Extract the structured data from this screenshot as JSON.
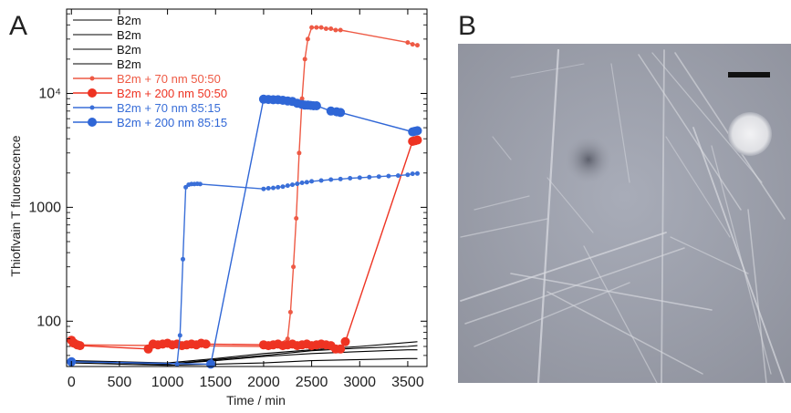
{
  "panels": {
    "a_label": "A",
    "b_label": "B"
  },
  "micrograph": {
    "subject": "negative-stain TEM micrograph of amyloid fibrils",
    "scale_bar_color": "#111111"
  },
  "chart_data": {
    "type": "line",
    "xlabel": "Time / min",
    "ylabel": "Thioflvain T fluorescence",
    "xlim": [
      -50,
      3700
    ],
    "ylim": [
      40,
      55000
    ],
    "y_scale": "log",
    "x_ticks": [
      0,
      500,
      1000,
      1500,
      2000,
      2500,
      3000,
      3500
    ],
    "x_tick_labels": [
      "0",
      "500",
      "1000",
      "1500",
      "2000",
      "2500",
      "3000",
      "3500"
    ],
    "y_ticks": [
      100,
      1000,
      10000
    ],
    "y_tick_labels": [
      "100",
      "1000",
      "10⁴"
    ],
    "legend_position": "top-left",
    "series": [
      {
        "name": "B2m",
        "color": "#000000",
        "marker": "none",
        "marker_size": 0,
        "x": [
          0,
          500,
          1000,
          1500,
          2000,
          2500,
          3000,
          3500,
          3600
        ],
        "y": [
          43,
          42,
          41,
          42,
          43,
          45,
          46,
          47,
          47
        ]
      },
      {
        "name": "B2m",
        "color": "#000000",
        "marker": "none",
        "marker_size": 0,
        "x": [
          0,
          500,
          1000,
          1500,
          2000,
          2500,
          3000,
          3500,
          3600
        ],
        "y": [
          45,
          43,
          42,
          45,
          49,
          52,
          54,
          56,
          56
        ]
      },
      {
        "name": "B2m",
        "color": "#000000",
        "marker": "none",
        "marker_size": 0,
        "x": [
          0,
          500,
          1000,
          1500,
          2000,
          2500,
          3000,
          3500,
          3600
        ],
        "y": [
          44,
          43,
          42,
          46,
          50,
          55,
          58,
          60,
          61
        ]
      },
      {
        "name": "B2m",
        "color": "#000000",
        "marker": "none",
        "marker_size": 0,
        "x": [
          0,
          500,
          1000,
          1500,
          2000,
          2500,
          3000,
          3500,
          3600
        ],
        "y": [
          45,
          44,
          43,
          47,
          52,
          56,
          60,
          65,
          66
        ]
      },
      {
        "name": "B2m + 70 nm 50:50",
        "color": "#ee5a45",
        "marker": "circle",
        "marker_size": 2.5,
        "x": [
          0,
          2000,
          2150,
          2250,
          2280,
          2310,
          2340,
          2370,
          2400,
          2430,
          2460,
          2500,
          2550,
          2600,
          2650,
          2700,
          2750,
          2800,
          3500,
          3550,
          3600
        ],
        "y": [
          62,
          60,
          62,
          70,
          120,
          300,
          800,
          3000,
          9000,
          20000,
          30000,
          38000,
          38000,
          38000,
          37000,
          37000,
          36000,
          36000,
          28000,
          27000,
          26500
        ]
      },
      {
        "name": "B2m + 200 nm 50:50",
        "color": "#ee3322",
        "marker": "circle",
        "marker_size": 5,
        "x": [
          0,
          30,
          60,
          90,
          800,
          850,
          900,
          950,
          1000,
          1050,
          1100,
          1150,
          1200,
          1250,
          1300,
          1350,
          1400,
          2000,
          2050,
          2100,
          2150,
          2200,
          2250,
          2300,
          2350,
          2400,
          2450,
          2500,
          2550,
          2600,
          2650,
          2700,
          2750,
          2800,
          2850,
          3550,
          3575,
          3600
        ],
        "y": [
          68,
          64,
          62,
          61,
          57,
          63,
          62,
          63,
          64,
          62,
          63,
          61,
          62,
          63,
          62,
          64,
          63,
          62,
          61,
          62,
          63,
          61,
          62,
          63,
          61,
          62,
          63,
          61,
          62,
          63,
          62,
          61,
          57,
          57,
          66,
          3800,
          3850,
          3900
        ]
      },
      {
        "name": "B2m + 70 nm 85:15",
        "color": "#3a6fd8",
        "marker": "circle",
        "marker_size": 2.5,
        "x": [
          1100,
          1130,
          1160,
          1190,
          1220,
          1250,
          1280,
          1310,
          1340,
          2000,
          2050,
          2100,
          2150,
          2200,
          2250,
          2300,
          2350,
          2400,
          2450,
          2500,
          2600,
          2700,
          2800,
          2900,
          3000,
          3100,
          3200,
          3300,
          3400,
          3500,
          3550,
          3600
        ],
        "y": [
          42,
          75,
          350,
          1500,
          1580,
          1600,
          1600,
          1610,
          1600,
          1450,
          1470,
          1480,
          1500,
          1520,
          1550,
          1580,
          1610,
          1640,
          1660,
          1690,
          1720,
          1750,
          1770,
          1800,
          1820,
          1840,
          1860,
          1880,
          1900,
          1930,
          1970,
          1980
        ]
      },
      {
        "name": "B2m + 200 nm 85:15",
        "color": "#2f66d6",
        "marker": "circle",
        "marker_size": 5,
        "x": [
          0,
          1450,
          2000,
          2050,
          2100,
          2150,
          2200,
          2250,
          2300,
          2350,
          2400,
          2430,
          2460,
          2490,
          2520,
          2550,
          2700,
          2760,
          2800,
          3550,
          3575,
          3600
        ],
        "y": [
          44,
          42,
          8900,
          8850,
          8800,
          8800,
          8700,
          8600,
          8500,
          8200,
          8000,
          7900,
          7900,
          7850,
          7800,
          7800,
          7000,
          6900,
          6800,
          4600,
          4650,
          4700
        ]
      }
    ]
  }
}
